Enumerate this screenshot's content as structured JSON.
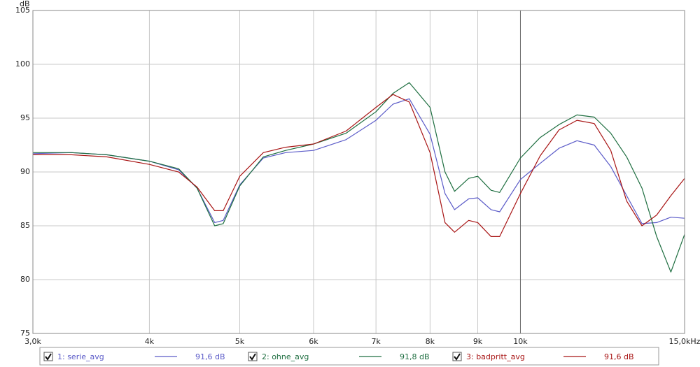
{
  "chart_data": {
    "type": "line",
    "y_label": "dB",
    "xscale": "log",
    "grid": true,
    "xlim": [
      3000,
      15000
    ],
    "ylim": [
      75,
      105
    ],
    "yticks": [
      75,
      80,
      85,
      90,
      95,
      100,
      105
    ],
    "xticks": [
      {
        "value": 3000,
        "label": "3,0k"
      },
      {
        "value": 4000,
        "label": "4k"
      },
      {
        "value": 5000,
        "label": "5k"
      },
      {
        "value": 6000,
        "label": "6k"
      },
      {
        "value": 7000,
        "label": "7k"
      },
      {
        "value": 8000,
        "label": "8k"
      },
      {
        "value": 9000,
        "label": "9k"
      },
      {
        "value": 10000,
        "label": "10k"
      },
      {
        "value": 15000,
        "label": "15,0kHz"
      }
    ],
    "x": [
      3000,
      3300,
      3600,
      4000,
      4300,
      4500,
      4700,
      4800,
      5000,
      5300,
      5600,
      6000,
      6500,
      7000,
      7300,
      7600,
      8000,
      8300,
      8500,
      8800,
      9000,
      9300,
      9500,
      10000,
      10500,
      11000,
      11500,
      12000,
      12500,
      13000,
      13500,
      14000,
      14500,
      15000
    ],
    "series": [
      {
        "name": "1: serie_avg",
        "legend_value": "91,6 dB",
        "color": "#5b5bc8",
        "values": [
          91.7,
          91.8,
          91.6,
          91.0,
          90.2,
          88.5,
          85.3,
          85.5,
          88.8,
          91.3,
          91.8,
          92.0,
          93.0,
          94.8,
          96.3,
          96.8,
          93.5,
          88.0,
          86.5,
          87.5,
          87.6,
          86.5,
          86.3,
          89.3,
          90.8,
          92.2,
          92.9,
          92.5,
          90.5,
          87.8,
          85.2,
          85.3,
          85.8,
          85.7
        ]
      },
      {
        "name": "2: ohne_avg",
        "legend_value": "91,8 dB",
        "color": "#1e6e40",
        "values": [
          91.8,
          91.8,
          91.6,
          91.0,
          90.3,
          88.5,
          85.0,
          85.2,
          88.7,
          91.4,
          92.0,
          92.6,
          93.6,
          95.6,
          97.3,
          98.3,
          96.0,
          90.0,
          88.2,
          89.4,
          89.6,
          88.3,
          88.1,
          91.3,
          93.2,
          94.4,
          95.3,
          95.1,
          93.6,
          91.4,
          88.5,
          84.0,
          80.7,
          84.2
        ]
      },
      {
        "name": "3: badpritt_avg",
        "legend_value": "91,6 dB",
        "color": "#a81414",
        "values": [
          91.6,
          91.6,
          91.4,
          90.7,
          90.0,
          88.6,
          86.4,
          86.4,
          89.6,
          91.8,
          92.3,
          92.6,
          93.8,
          96.0,
          97.2,
          96.5,
          91.8,
          85.3,
          84.4,
          85.5,
          85.3,
          84.0,
          84.0,
          88.0,
          91.5,
          93.9,
          94.8,
          94.5,
          92.0,
          87.3,
          85.0,
          86.0,
          87.8,
          89.4
        ]
      }
    ]
  }
}
